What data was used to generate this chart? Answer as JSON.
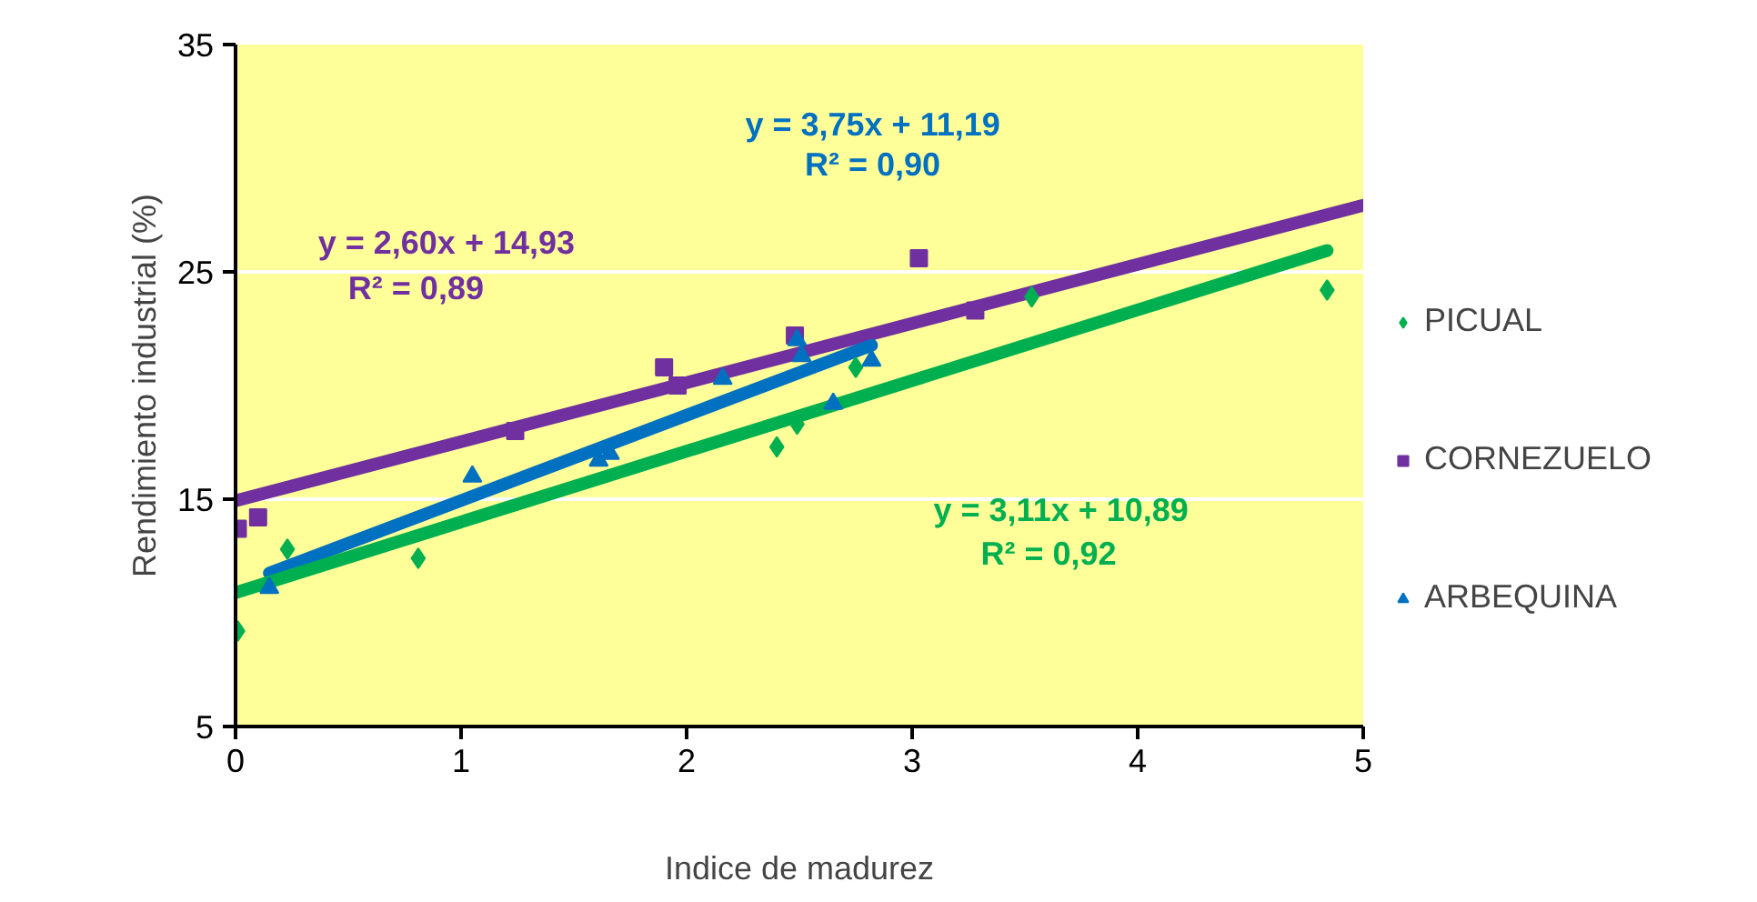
{
  "chart_data": {
    "type": "scatter",
    "xlabel": "Indice de madurez",
    "ylabel": "Rendimiento industrial (%)",
    "xlim": [
      0,
      5
    ],
    "ylim": [
      5,
      35
    ],
    "xticks": [
      0,
      1,
      2,
      3,
      4,
      5
    ],
    "yticks": [
      5,
      15,
      25,
      35
    ],
    "grid": "y",
    "legend": "right",
    "series": [
      {
        "name": "PICUAL",
        "color": "#00b050",
        "marker": "diamond",
        "x": [
          0.01,
          0.23,
          0.81,
          2.4,
          2.49,
          2.75,
          3.53,
          4.84
        ],
        "values": [
          9.2,
          12.8,
          12.4,
          17.3,
          18.3,
          20.8,
          23.9,
          24.2
        ]
      },
      {
        "name": "CORNEZUELO",
        "color": "#7030a0",
        "marker": "square",
        "x": [
          0.01,
          0.1,
          1.24,
          1.9,
          1.96,
          2.48,
          3.03,
          3.28
        ],
        "values": [
          13.7,
          14.2,
          18.0,
          20.8,
          20.0,
          22.2,
          25.6,
          23.3
        ]
      },
      {
        "name": "ARBEQUINA",
        "color": "#0070c0",
        "marker": "triangle",
        "x": [
          0.15,
          1.05,
          1.61,
          1.66,
          2.16,
          2.49,
          2.51,
          2.65,
          2.82
        ],
        "values": [
          11.1,
          16.0,
          16.7,
          17.0,
          20.3,
          22.0,
          21.3,
          19.2,
          21.1
        ]
      },
      {
        "type": "line",
        "color": "#7030a0",
        "marker": "none",
        "x": [
          0,
          5
        ],
        "values": [
          14.93,
          27.93
        ]
      },
      {
        "type": "line",
        "color": "#0070c0",
        "marker": "none",
        "x": [
          0.15,
          2.82
        ],
        "values": [
          11.75,
          21.77
        ]
      },
      {
        "type": "line",
        "color": "#00b050",
        "marker": "none",
        "x": [
          0,
          4.84
        ],
        "values": [
          10.89,
          25.94
        ]
      }
    ],
    "annotations": [
      "y = 2,60x + 14,93",
      "R² = 0,89",
      "y = 3,75x + 11,19",
      "R² = 0,90",
      "y = 3,11x + 10,89",
      "R² = 0,92"
    ]
  }
}
